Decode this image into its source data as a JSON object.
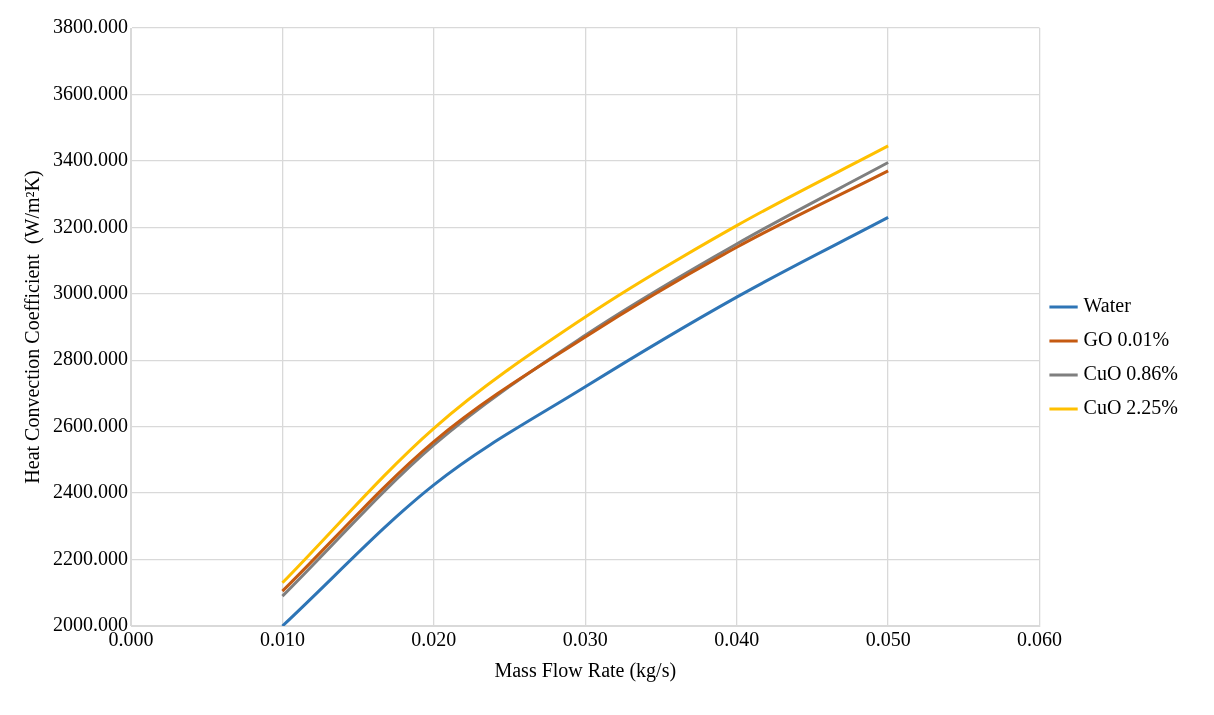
{
  "chart_data": {
    "type": "line",
    "xlabel": "Mass Flow Rate (kg/s)",
    "ylabel": "Heat Convection Coefficient  (W/m²K)",
    "x": [
      0.01,
      0.02,
      0.03,
      0.04,
      0.05
    ],
    "series": [
      {
        "name": "Water",
        "color": "#2e75b6",
        "values": [
          2000,
          2425,
          2720,
          2990,
          3230
        ]
      },
      {
        "name": "GO 0.01%",
        "color": "#c55a11",
        "values": [
          2105,
          2555,
          2870,
          3140,
          3370
        ]
      },
      {
        "name": "CuO 0.86%",
        "color": "#7f7f7f",
        "values": [
          2090,
          2545,
          2875,
          3150,
          3395
        ]
      },
      {
        "name": "CuO 2.25%",
        "color": "#ffc000",
        "values": [
          2130,
          2595,
          2930,
          3205,
          3445
        ]
      }
    ],
    "xlim": [
      0,
      0.06
    ],
    "xticks": [
      {
        "value": 0,
        "label": "0.000"
      },
      {
        "value": 0.01,
        "label": "0.010"
      },
      {
        "value": 0.02,
        "label": "0.020"
      },
      {
        "value": 0.03,
        "label": "0.030"
      },
      {
        "value": 0.04,
        "label": "0.040"
      },
      {
        "value": 0.05,
        "label": "0.050"
      },
      {
        "value": 0.06,
        "label": "0.060"
      }
    ],
    "ylim": [
      2000,
      3800
    ],
    "yticks": [
      {
        "value": 2000,
        "label": "2000.000"
      },
      {
        "value": 2200,
        "label": "2200.000"
      },
      {
        "value": 2400,
        "label": "2400.000"
      },
      {
        "value": 2600,
        "label": "2600.000"
      },
      {
        "value": 2800,
        "label": "2800.000"
      },
      {
        "value": 3000,
        "label": "3000.000"
      },
      {
        "value": 3200,
        "label": "3200.000"
      },
      {
        "value": 3400,
        "label": "3400.000"
      },
      {
        "value": 3600,
        "label": "3600.000"
      },
      {
        "value": 3800,
        "label": "3800.000"
      }
    ],
    "grid": true,
    "legend": "right",
    "marker": "none",
    "line_style": "solid"
  }
}
